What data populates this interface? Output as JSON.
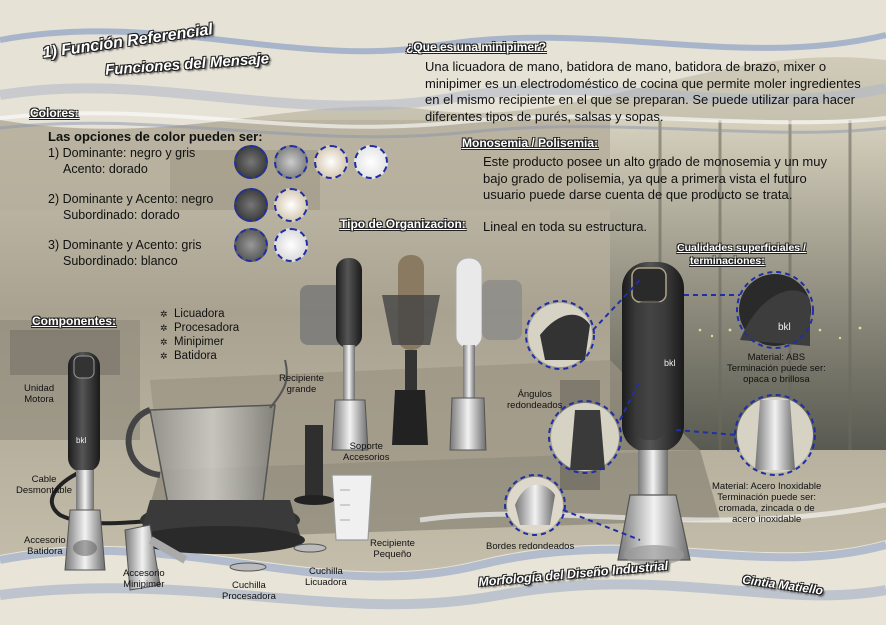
{
  "headers": {
    "title1": "1) Función Referencial",
    "title2": "Funciones del Mensaje",
    "footer_left": "Morfología del Diseño Industrial",
    "footer_right": "Cintia Matiello"
  },
  "sections": {
    "colores": "Colores:",
    "componentes": "Componentes:",
    "tipo_org": "Tipo de Organizacion:",
    "monosemia": "Monosemia / Polisemia:",
    "que_es": "¿Que es una minipimer?",
    "cualidades1": "Cualidades superficiales /",
    "cualidades2": "terminaciones:"
  },
  "que_es_text": "Una licuadora de mano, batidora de mano, batidora de brazo, mixer o minipimer es un electrodoméstico de cocina que permite moler ingredientes en el mismo recipiente en el que se preparan. Se puede utilizar para hacer diferentes tipos de purés, salsas y sopas.",
  "monosemia_text": "Este producto posee un alto grado de monosemia y un muy bajo grado de polisemia, ya que a primera vista el futuro usuario puede darse cuenta de que producto se trata.",
  "lineal_text": "Lineal en toda su estructura.",
  "colores": {
    "intro": "Las opciones de color pueden ser:",
    "op1a": "1) Dominante: negro y gris",
    "op1b": "Acento: dorado",
    "op2a": "2) Dominante y Acento: negro",
    "op2b": "Subordinado: dorado",
    "op3a": "3) Dominante y Acento: gris",
    "op3b": "Subordinado: blanco"
  },
  "componentes": [
    "Licuadora",
    "Procesadora",
    "Minipimer",
    "Batidora"
  ],
  "labels": {
    "unidad_motora": [
      "Unidad",
      "Motora"
    ],
    "cable": [
      "Cable",
      "Desmontable"
    ],
    "acc_batidora": [
      "Accesorio",
      "Batidora"
    ],
    "acc_minipimer": [
      "Accesorio",
      "Minipimer"
    ],
    "cuchilla_proc": [
      "Cuchilla",
      "Procesadora"
    ],
    "cuchilla_lic": [
      "Cuchilla",
      "Licuadora"
    ],
    "recipiente_peq": [
      "Recipiente",
      "Pequeño"
    ],
    "recipiente_gr": [
      "Recipiente",
      "grande"
    ],
    "soporte": [
      "Soporte",
      "Accesorios"
    ],
    "angulos": [
      "Ángulos",
      "redondeados"
    ],
    "bordes": "Bordes redondeados",
    "material_abs": [
      "Material: ABS",
      "Terminación puede ser:",
      "opaca o brillosa"
    ],
    "material_acero": [
      "Material: Acero Inoxidable",
      "Terminación puede ser:",
      "cromada, zincada o de",
      "acero inoxidable"
    ]
  },
  "brand": "bkl"
}
